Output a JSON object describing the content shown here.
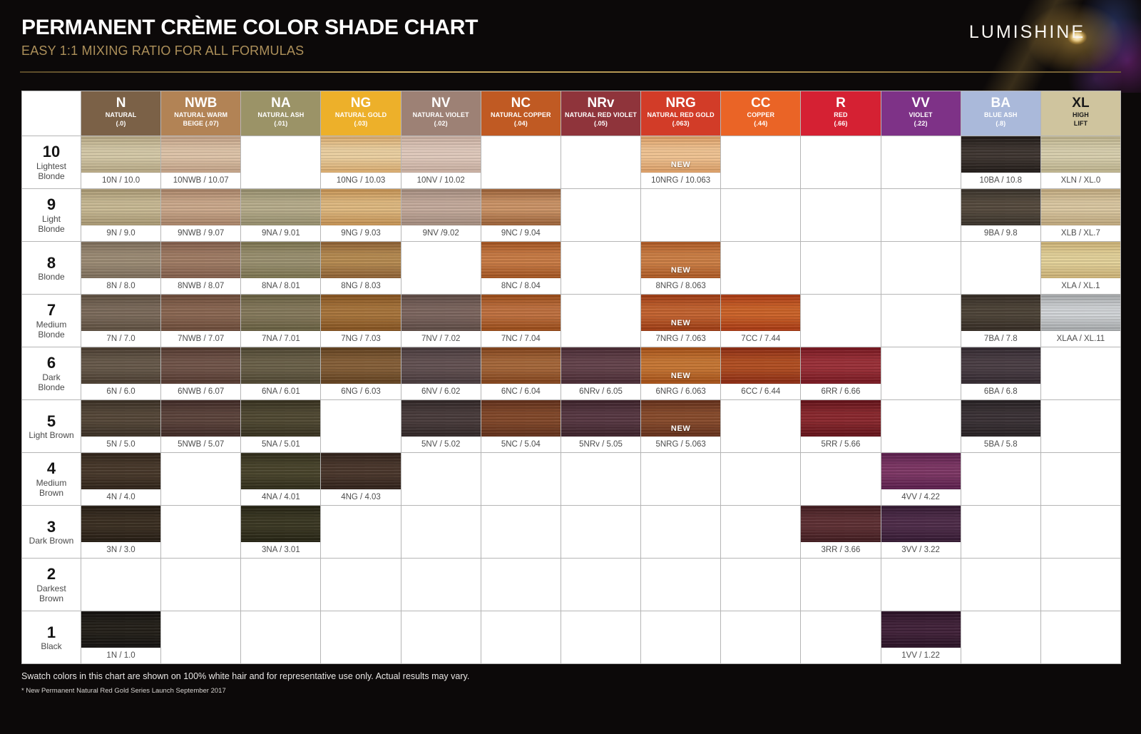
{
  "header": {
    "title": "PERMANENT CRÈME COLOR SHADE CHART",
    "subtitle": "EASY 1:1 MIXING RATIO FOR ALL FORMULAS",
    "brand": "LUMISHINE",
    "accent_gold": "#ad905a"
  },
  "table": {
    "new_badge": "NEW",
    "grid_line_color": "#b5b5b5",
    "columns": [
      {
        "id": "N",
        "letter": "N",
        "lines": [
          "NATURAL",
          "(.0)"
        ],
        "header_bg": "#7b6147",
        "header_text": "#ffffff"
      },
      {
        "id": "NWB",
        "letter": "NWB",
        "lines": [
          "NATURAL WARM",
          "BEIGE (.07)"
        ],
        "header_bg": "#b28355",
        "header_text": "#ffffff"
      },
      {
        "id": "NA",
        "letter": "NA",
        "lines": [
          "NATURAL ASH",
          "(.01)"
        ],
        "header_bg": "#9b9367",
        "header_text": "#ffffff"
      },
      {
        "id": "NG",
        "letter": "NG",
        "lines": [
          "NATURAL GOLD",
          "(.03)"
        ],
        "header_bg": "#edb02a",
        "header_text": "#ffffff"
      },
      {
        "id": "NV",
        "letter": "NV",
        "lines": [
          "NATURAL VIOLET",
          "(.02)"
        ],
        "header_bg": "#9d8175",
        "header_text": "#ffffff"
      },
      {
        "id": "NC",
        "letter": "NC",
        "lines": [
          "NATURAL COPPER",
          "(.04)"
        ],
        "header_bg": "#c05a23",
        "header_text": "#ffffff"
      },
      {
        "id": "NRv",
        "letter": "NRv",
        "lines": [
          "NATURAL RED VIOLET",
          "(.05)"
        ],
        "header_bg": "#8f343b",
        "header_text": "#ffffff"
      },
      {
        "id": "NRG",
        "letter": "NRG",
        "lines": [
          "NATURAL RED GOLD",
          "(.063)"
        ],
        "header_bg": "#d23c28",
        "header_text": "#ffffff"
      },
      {
        "id": "CC",
        "letter": "CC",
        "lines": [
          "COPPER",
          "(.44)"
        ],
        "header_bg": "#ea6426",
        "header_text": "#ffffff"
      },
      {
        "id": "R",
        "letter": "R",
        "lines": [
          "RED",
          "(.66)"
        ],
        "header_bg": "#d52133",
        "header_text": "#ffffff"
      },
      {
        "id": "VV",
        "letter": "VV",
        "lines": [
          "VIOLET",
          "(.22)"
        ],
        "header_bg": "#7e3287",
        "header_text": "#ffffff"
      },
      {
        "id": "BA",
        "letter": "BA",
        "lines": [
          "BLUE ASH",
          "(.8)"
        ],
        "header_bg": "#aab9da",
        "header_text": "#ffffff"
      },
      {
        "id": "XL",
        "letter": "XL",
        "lines": [
          "HIGH",
          "LIFT"
        ],
        "header_bg": "#cfc49e",
        "header_text": "#1a1a1a"
      }
    ],
    "rows": [
      {
        "number": "10",
        "descriptor": "Lightest Blonde",
        "cells": {
          "N": {
            "label": "10N / 10.0",
            "c1": "#b9aa85",
            "c2": "#d9cdab"
          },
          "NWB": {
            "label": "10NWB / 10.07",
            "c1": "#c5a387",
            "c2": "#e3c8ac"
          },
          "NG": {
            "label": "10NG / 10.03",
            "c1": "#ddad6e",
            "c2": "#f0d4a4"
          },
          "NV": {
            "label": "10NV / 10.02",
            "c1": "#ccb1a3",
            "c2": "#e5cec0"
          },
          "NRG": {
            "label": "10NRG / 10.063",
            "c1": "#e0a066",
            "c2": "#f5c795",
            "new": true
          },
          "BA": {
            "label": "10BA / 10.8",
            "c1": "#211b18",
            "c2": "#3f3631"
          },
          "XL": {
            "label": "XLN / XL.0",
            "c1": "#c0b58e",
            "c2": "#dcd3b1"
          }
        }
      },
      {
        "number": "9",
        "descriptor": "Light Blonde",
        "cells": {
          "N": {
            "label": "9N / 9.0",
            "c1": "#ab9a74",
            "c2": "#ccbd97"
          },
          "NWB": {
            "label": "9NWB / 9.07",
            "c1": "#ab8569",
            "c2": "#cfac8e"
          },
          "NA": {
            "label": "9NA / 9.01",
            "c1": "#98906e",
            "c2": "#bab08e"
          },
          "NG": {
            "label": "9NG / 9.03",
            "c1": "#c79353",
            "c2": "#e3bc82"
          },
          "NV": {
            "label": "9NV /9.02",
            "c1": "#a68e80",
            "c2": "#c8ae9f"
          },
          "NC": {
            "label": "9NC / 9.04",
            "c1": "#9d6238",
            "c2": "#cf9668"
          },
          "BA": {
            "label": "9BA / 9.8",
            "c1": "#3a332b",
            "c2": "#564b3e"
          },
          "XL": {
            "label": "XLB / XL.7",
            "c1": "#c2aa7e",
            "c2": "#decba4"
          }
        }
      },
      {
        "number": "8",
        "descriptor": "Blonde",
        "cells": {
          "N": {
            "label": "8N / 8.0",
            "c1": "#7f6f5c",
            "c2": "#9f8e77"
          },
          "NWB": {
            "label": "8NWB / 8.07",
            "c1": "#845f4c",
            "c2": "#a37e66"
          },
          "NA": {
            "label": "8NA / 8.01",
            "c1": "#7d7550",
            "c2": "#9d9372"
          },
          "NG": {
            "label": "8NG / 8.03",
            "c1": "#8f6134",
            "c2": "#b98d52"
          },
          "NC": {
            "label": "8NC / 8.04",
            "c1": "#a55420",
            "c2": "#cc7d46"
          },
          "NRG": {
            "label": "8NRG / 8.063",
            "c1": "#b05a24",
            "c2": "#d08146",
            "new": true
          },
          "XL": {
            "label": "XLA / XL.1",
            "c1": "#cfb477",
            "c2": "#e8d69d"
          }
        }
      },
      {
        "number": "7",
        "descriptor": "Medium Blonde",
        "cells": {
          "N": {
            "label": "7N / 7.0",
            "c1": "#5e4f40",
            "c2": "#7d6c5c"
          },
          "NWB": {
            "label": "7NWB / 7.07",
            "c1": "#6c4b39",
            "c2": "#8c6853"
          },
          "NA": {
            "label": "7NA / 7.01",
            "c1": "#675f40",
            "c2": "#877b5d"
          },
          "NG": {
            "label": "7NG / 7.03",
            "c1": "#85521f",
            "c2": "#aa763c"
          },
          "NV": {
            "label": "7NV / 7.02",
            "c1": "#5e4b45",
            "c2": "#7e6760"
          },
          "NC": {
            "label": "7NC / 7.04",
            "c1": "#9a4a16",
            "c2": "#c27240"
          },
          "NRG": {
            "label": "7NRG / 7.063",
            "c1": "#9e3a12",
            "c2": "#c66430",
            "new": true
          },
          "CC": {
            "label": "7CC / 7.44",
            "c1": "#aa3812",
            "c2": "#cf6429"
          },
          "BA": {
            "label": "7BA / 7.8",
            "c1": "#352c24",
            "c2": "#4e4438"
          },
          "XL": {
            "label": "XLAA / XL.11",
            "c1": "#a8abad",
            "c2": "#d5d8db"
          }
        }
      },
      {
        "number": "6",
        "descriptor": "Dark Blonde",
        "cells": {
          "N": {
            "label": "6N / 6.0",
            "c1": "#4a3d30",
            "c2": "#685a4b"
          },
          "NWB": {
            "label": "6NWB / 6.07",
            "c1": "#54392f",
            "c2": "#72554a"
          },
          "NA": {
            "label": "6NA / 6.01",
            "c1": "#4e4631",
            "c2": "#6c624a"
          },
          "NG": {
            "label": "6NG / 6.03",
            "c1": "#61401e",
            "c2": "#876038"
          },
          "NV": {
            "label": "6NV / 6.02",
            "c1": "#483a3c",
            "c2": "#645253"
          },
          "NC": {
            "label": "6NC / 6.04",
            "c1": "#82421a",
            "c2": "#a8683a"
          },
          "NRv": {
            "label": "6NRv / 6.05",
            "c1": "#492a33",
            "c2": "#65434c"
          },
          "NRG": {
            "label": "6NRG / 6.063",
            "c1": "#a64f16",
            "c2": "#ca7834",
            "new": true
          },
          "CC": {
            "label": "6CC / 6.44",
            "c1": "#8c2a12",
            "c2": "#b44f22"
          },
          "R": {
            "label": "6RR / 6.66",
            "c1": "#77161f",
            "c2": "#9d3038"
          },
          "BA": {
            "label": "6BA / 6.8",
            "c1": "#332930",
            "c2": "#4b3e45"
          }
        }
      },
      {
        "number": "5",
        "descriptor": "Light Brown",
        "cells": {
          "N": {
            "label": "5N / 5.0",
            "c1": "#3b3025",
            "c2": "#564839"
          },
          "NWB": {
            "label": "5NWB / 5.07",
            "c1": "#402a26",
            "c2": "#5d443c"
          },
          "NA": {
            "label": "5NA / 5.01",
            "c1": "#37311f",
            "c2": "#514a33"
          },
          "NV": {
            "label": "5NV / 5.02",
            "c1": "#312727",
            "c2": "#4a3c3c"
          },
          "NC": {
            "label": "5NC / 5.04",
            "c1": "#62301b",
            "c2": "#84492a"
          },
          "NRv": {
            "label": "5NRv / 5.05",
            "c1": "#3d222a",
            "c2": "#583843"
          },
          "NRG": {
            "label": "5NRG / 5.063",
            "c1": "#65301b",
            "c2": "#8a4c2c",
            "new": true
          },
          "R": {
            "label": "5RR / 5.66",
            "c1": "#641219",
            "c2": "#8c282e"
          },
          "BA": {
            "label": "5BA / 5.8",
            "c1": "#272123",
            "c2": "#3b3236"
          }
        }
      },
      {
        "number": "4",
        "descriptor": "Medium Brown",
        "cells": {
          "N": {
            "label": "4N / 4.0",
            "c1": "#302419",
            "c2": "#49392b"
          },
          "NA": {
            "label": "4NA / 4.01",
            "c1": "#302d1a",
            "c2": "#4a452c"
          },
          "NG": {
            "label": "4NG / 4.03",
            "c1": "#31221a",
            "c2": "#4b372c"
          },
          "VV": {
            "label": "4VV / 4.22",
            "c1": "#5c1f4e",
            "c2": "#7f3766"
          }
        }
      },
      {
        "number": "3",
        "descriptor": "Dark Brown",
        "cells": {
          "N": {
            "label": "3N / 3.0",
            "c1": "#261d14",
            "c2": "#3b2f22"
          },
          "NA": {
            "label": "3NA / 3.01",
            "c1": "#262414",
            "c2": "#3b3823"
          },
          "R": {
            "label": "3RR / 3.66",
            "c1": "#421c20",
            "c2": "#5f3034"
          },
          "VV": {
            "label": "3VV / 3.22",
            "c1": "#351a33",
            "c2": "#4f2c4a"
          }
        }
      },
      {
        "number": "2",
        "descriptor": "Darkest Brown",
        "cells": {}
      },
      {
        "number": "1",
        "descriptor": "Black",
        "cells": {
          "N": {
            "label": "1N / 1.0",
            "c1": "#141110",
            "c2": "#242019"
          },
          "VV": {
            "label": "1VV / 1.22",
            "c1": "#2a1226",
            "c2": "#42223a"
          }
        }
      }
    ]
  },
  "footer": {
    "line1": "Swatch colors in this chart are shown on 100% white hair and for representative use only. Actual results may vary.",
    "line2": "* New Permanent Natural Red Gold Series Launch September 2017"
  }
}
